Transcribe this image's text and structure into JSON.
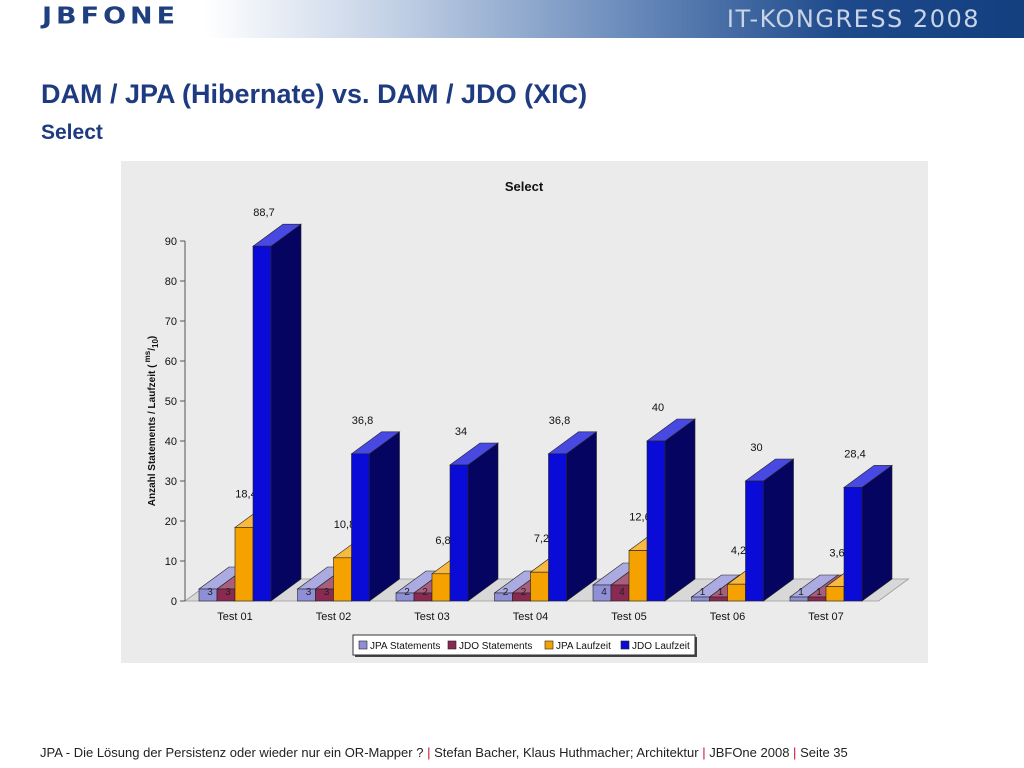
{
  "header": {
    "logo_text": "JBFONE",
    "conference": "IT-KONGRESS 2008"
  },
  "slide": {
    "title": "DAM / JPA (Hibernate) vs. DAM / JDO (XIC)",
    "subtitle": "Select"
  },
  "chart_data": {
    "type": "bar",
    "title": "Select",
    "xlabel": "",
    "ylabel": "Anzahl Statements / Laufzeit ( ms/10)",
    "ylabel_parts": [
      "Anzahl Statements / Laufzeit (",
      "ms",
      "/",
      "10",
      ")"
    ],
    "ylim": [
      0,
      90
    ],
    "yticks": [
      0,
      10,
      20,
      30,
      40,
      50,
      60,
      70,
      80,
      90
    ],
    "grid": false,
    "legend_position": "bottom",
    "categories": [
      "Test 01",
      "Test 02",
      "Test 03",
      "Test 04",
      "Test 05",
      "Test 06",
      "Test 07"
    ],
    "series": [
      {
        "name": "JPA Statements",
        "color": "#8f8fd8",
        "values": [
          3,
          3,
          2,
          2,
          4,
          1,
          1
        ],
        "labels": [
          "3",
          "3",
          "2",
          "2",
          "4",
          "1",
          "1"
        ]
      },
      {
        "name": "JDO Statements",
        "color": "#8a2a52",
        "values": [
          3,
          3,
          2,
          2,
          4,
          1,
          1
        ],
        "labels": [
          "3",
          "3",
          "2",
          "2",
          "4",
          "1",
          "1"
        ]
      },
      {
        "name": "JPA Laufzeit",
        "color": "#f5a200",
        "values": [
          18.4,
          10.8,
          6.8,
          7.2,
          12.6,
          4.2,
          3.6
        ],
        "labels": [
          "18,4",
          "10,8",
          "6,8",
          "7,2",
          "12,6",
          "4,2",
          "3,6"
        ]
      },
      {
        "name": "JDO Laufzeit",
        "color": "#0b0bd8",
        "values": [
          88.7,
          36.8,
          34,
          36.8,
          40,
          30,
          28.4
        ],
        "labels": [
          "88,7",
          "36,8",
          "34",
          "36,8",
          "40",
          "30",
          "28,4"
        ]
      }
    ]
  },
  "footer": {
    "topic": "JPA - Die Lösung der Persistenz oder wieder nur ein OR-Mapper ?",
    "separator": "|",
    "authors": "Stefan Bacher, Klaus Huthmacher; Architektur",
    "event": "JBFOne 2008",
    "page": "Seite 35"
  }
}
